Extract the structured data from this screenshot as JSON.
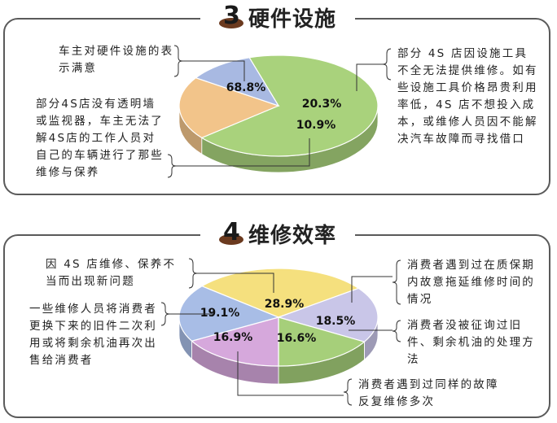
{
  "section1": {
    "number": "3",
    "title": "硬件设施",
    "notes": [
      "车主对硬件设施的表示满意",
      "部分4S店没有透明墙或监视器，车主无法了解4S店的工作人员对自己的车辆进行了那些维修与保养",
      "部分 4S 店因设施工具不全无法提供维修。如有些设施工具价格昂贵利用率低，4S 店不想投入成本，或维修人员因不能解决汽车故障而寻找借口"
    ]
  },
  "section2": {
    "number": "4",
    "title": "维修效率",
    "notes": [
      "因 4S 店维修、保养不当而出现新问题",
      "一些维修人员将消费者更换下来的旧件二次利用或将剩余机油再次出售给消费者",
      "消费者遇到过在质保期内故意拖延维修时间的情况",
      "消费者没被征询过旧件、剩余机油的处理方法",
      "消费者遇到过同样的故障反复维修多次"
    ]
  },
  "chart_data": [
    {
      "type": "pie",
      "title": "硬件设施",
      "labels": [
        "68.8%",
        "20.3%",
        "10.9%"
      ],
      "values": [
        68.8,
        20.3,
        10.9
      ],
      "colors": [
        "#a9d27c",
        "#f2c48a",
        "#a8b9e2"
      ]
    },
    {
      "type": "pie",
      "title": "维修效率",
      "labels": [
        "28.9%",
        "18.5%",
        "16.6%",
        "16.9%",
        "19.1%"
      ],
      "values": [
        28.9,
        18.5,
        16.6,
        16.9,
        19.1
      ],
      "colors": [
        "#f5e07e",
        "#c9c6e8",
        "#a6cf7a",
        "#d6a8dc",
        "#a8bde6"
      ]
    }
  ]
}
